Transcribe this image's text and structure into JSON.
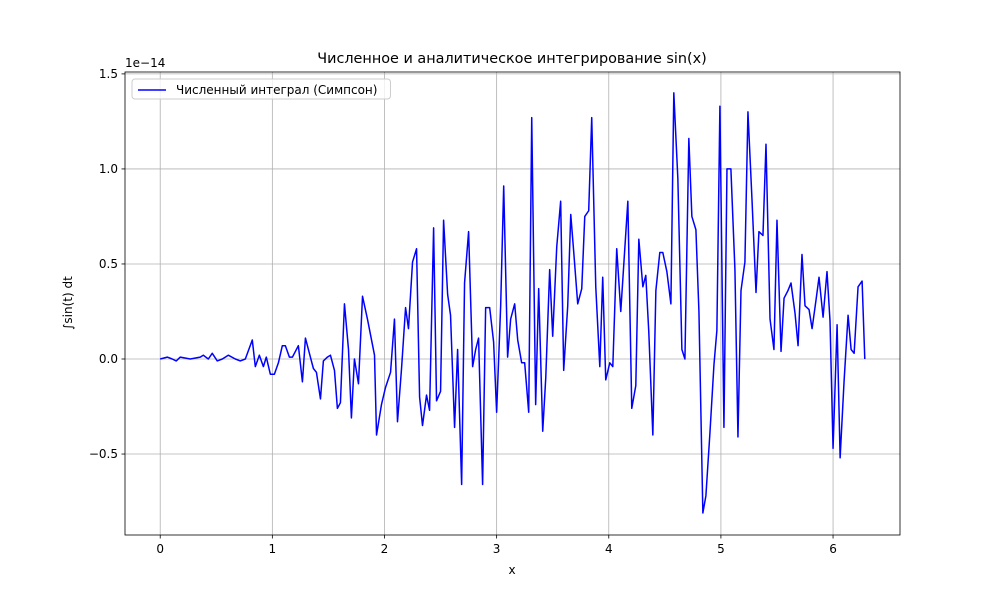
{
  "chart_data": {
    "type": "line",
    "title": "Численное и аналитическое интегрирование sin(x)",
    "xlabel": "x",
    "ylabel": "∫sin(t) dt",
    "offset_text": "1e−14",
    "grid": true,
    "legend_loc": "upper left",
    "xlim": [
      -0.314,
      6.597
    ],
    "ylim": [
      -0.926,
      1.51
    ],
    "xticks": [
      0,
      1,
      2,
      3,
      4,
      5,
      6
    ],
    "yticks": [
      {
        "value": -0.5,
        "label": "−0.5"
      },
      {
        "value": 0,
        "label": "0.0"
      },
      0.5,
      {
        "value": 1,
        "label": "1.0"
      },
      {
        "value": 1.5,
        "label": "1.5"
      }
    ],
    "x": [
      0,
      0.063,
      0.107,
      0.143,
      0.179,
      0.268,
      0.357,
      0.384,
      0.429,
      0.464,
      0.509,
      0.554,
      0.607,
      0.67,
      0.714,
      0.759,
      0.821,
      0.848,
      0.884,
      0.92,
      0.946,
      0.982,
      1.018,
      1.054,
      1.089,
      1.116,
      1.152,
      1.179,
      1.232,
      1.268,
      1.295,
      1.339,
      1.366,
      1.393,
      1.429,
      1.455,
      1.491,
      1.518,
      1.554,
      1.58,
      1.607,
      1.643,
      1.679,
      1.705,
      1.732,
      1.768,
      1.804,
      1.848,
      1.911,
      1.929,
      1.973,
      2.009,
      2.054,
      2.089,
      2.116,
      2.152,
      2.188,
      2.214,
      2.25,
      2.286,
      2.313,
      2.339,
      2.375,
      2.402,
      2.438,
      2.464,
      2.5,
      2.527,
      2.563,
      2.589,
      2.625,
      2.652,
      2.688,
      2.714,
      2.75,
      2.786,
      2.813,
      2.839,
      2.875,
      2.902,
      2.938,
      2.973,
      3.0,
      3.036,
      3.063,
      3.098,
      3.125,
      3.161,
      3.188,
      3.223,
      3.25,
      3.286,
      3.313,
      3.348,
      3.375,
      3.411,
      3.438,
      3.473,
      3.5,
      3.536,
      3.571,
      3.598,
      3.634,
      3.661,
      3.688,
      3.723,
      3.759,
      3.786,
      3.821,
      3.848,
      3.884,
      3.92,
      3.946,
      3.973,
      4.009,
      4.036,
      4.071,
      4.107,
      4.17,
      4.205,
      4.241,
      4.268,
      4.304,
      4.33,
      4.357,
      4.393,
      4.42,
      4.455,
      4.482,
      4.518,
      4.554,
      4.58,
      4.616,
      4.652,
      4.679,
      4.714,
      4.741,
      4.777,
      4.804,
      4.839,
      4.866,
      4.902,
      4.938,
      4.964,
      4.991,
      5.027,
      5.054,
      5.089,
      5.125,
      5.152,
      5.179,
      5.214,
      5.241,
      5.277,
      5.313,
      5.339,
      5.375,
      5.402,
      5.438,
      5.473,
      5.5,
      5.536,
      5.563,
      5.598,
      5.625,
      5.661,
      5.688,
      5.723,
      5.75,
      5.786,
      5.813,
      5.848,
      5.875,
      5.911,
      5.946,
      5.973,
      6.0,
      6.036,
      6.063,
      6.098,
      6.134,
      6.161,
      6.188,
      6.223,
      6.259,
      6.283
    ],
    "series": [
      {
        "name": "Численный интеграл (Симпсон)",
        "color": "#0000ff",
        "values": [
          0,
          0.01,
          0,
          -0.01,
          0.01,
          0,
          0.01,
          0.02,
          0,
          0.03,
          -0.01,
          0,
          0.02,
          0,
          -0.01,
          0,
          0.1,
          -0.04,
          0.02,
          -0.04,
          0.01,
          -0.08,
          -0.08,
          -0.02,
          0.07,
          0.07,
          0.01,
          0.01,
          0.07,
          -0.12,
          0.11,
          0.01,
          -0.05,
          -0.07,
          -0.21,
          -0.01,
          0.01,
          0.02,
          -0.06,
          -0.26,
          -0.23,
          0.29,
          0.05,
          -0.31,
          0,
          -0.13,
          0.33,
          0.21,
          0.02,
          -0.4,
          -0.24,
          -0.15,
          -0.07,
          0.21,
          -0.33,
          -0.05,
          0.27,
          0.16,
          0.51,
          0.58,
          -0.2,
          -0.35,
          -0.19,
          -0.27,
          0.69,
          -0.22,
          -0.17,
          0.73,
          0.34,
          0.23,
          -0.36,
          0.05,
          -0.66,
          0.4,
          0.67,
          -0.04,
          0.05,
          0.11,
          -0.66,
          0.27,
          0.27,
          0.09,
          -0.28,
          0.28,
          0.91,
          0.01,
          0.21,
          0.29,
          0.1,
          -0.02,
          -0.02,
          -0.28,
          1.27,
          -0.24,
          0.37,
          -0.38,
          -0.1,
          0.47,
          0.12,
          0.59,
          0.83,
          -0.06,
          0.28,
          0.76,
          0.56,
          0.29,
          0.37,
          0.75,
          0.78,
          1.27,
          0.38,
          -0.04,
          0.43,
          -0.11,
          -0.02,
          -0.04,
          0.58,
          0.25,
          0.83,
          -0.26,
          -0.14,
          0.63,
          0.38,
          0.44,
          0.14,
          -0.4,
          0.36,
          0.56,
          0.56,
          0.46,
          0.29,
          1.4,
          0.95,
          0.05,
          0,
          1.16,
          0.75,
          0.68,
          0.25,
          -0.81,
          -0.72,
          -0.39,
          -0.03,
          0.15,
          1.33,
          -0.36,
          1,
          1,
          0.47,
          -0.41,
          0.36,
          0.51,
          1.3,
          0.84,
          0.35,
          0.67,
          0.65,
          1.13,
          0.21,
          0.05,
          0.73,
          0.04,
          0.32,
          0.36,
          0.4,
          0.24,
          0.07,
          0.55,
          0.28,
          0.26,
          0.16,
          0.31,
          0.43,
          0.22,
          0.46,
          0.2,
          -0.47,
          0.18,
          -0.52,
          -0.12,
          0.23,
          0.05,
          0.03,
          0.38,
          0.41,
          0
        ]
      }
    ]
  }
}
